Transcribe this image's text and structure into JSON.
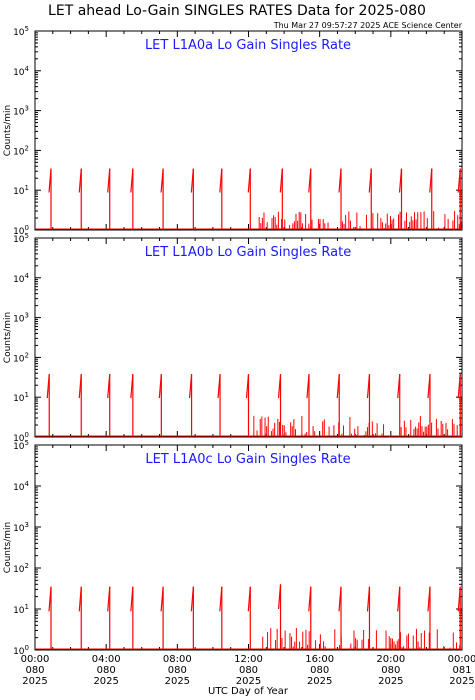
{
  "header": {
    "title": "LET ahead Lo-Gain SINGLES RATES Data for 2025-080",
    "timestamp": "Thu Mar 27 09:57:27 2025 ACE Science Center"
  },
  "axes": {
    "ylabel": "Counts/min",
    "xlabel": "UTC Day of Year",
    "y_ticks": [
      {
        "base": "10",
        "exp": "0"
      },
      {
        "base": "10",
        "exp": "1"
      },
      {
        "base": "10",
        "exp": "2"
      },
      {
        "base": "10",
        "exp": "3"
      },
      {
        "base": "10",
        "exp": "4"
      },
      {
        "base": "10",
        "exp": "5"
      }
    ],
    "x_ticks": [
      {
        "time": "00:00",
        "day": "080",
        "year": "2025"
      },
      {
        "time": "04:00",
        "day": "080",
        "year": "2025"
      },
      {
        "time": "08:00",
        "day": "080",
        "year": "2025"
      },
      {
        "time": "12:00",
        "day": "080",
        "year": "2025"
      },
      {
        "time": "16:00",
        "day": "080",
        "year": "2025"
      },
      {
        "time": "20:00",
        "day": "080",
        "year": "2025"
      },
      {
        "time": "00:00",
        "day": "081",
        "year": "2025"
      }
    ]
  },
  "colors": {
    "data": "#ff0000",
    "panel_title": "#1a1aff"
  },
  "chart_data": [
    {
      "type": "line",
      "title": "LET L1A0a Lo Gain Singles Rate",
      "xlabel": "UTC Day of Year",
      "ylabel": "Counts/min",
      "ylim": [
        1,
        100000
      ],
      "yscale": "log",
      "xlim": [
        0,
        24
      ],
      "x_unit": "hours UTC, day 080",
      "baseline": 1,
      "spikes": [
        {
          "x": 0.9,
          "y": 35
        },
        {
          "x": 2.6,
          "y": 35
        },
        {
          "x": 4.2,
          "y": 35
        },
        {
          "x": 5.5,
          "y": 35
        },
        {
          "x": 7.2,
          "y": 35
        },
        {
          "x": 8.9,
          "y": 35
        },
        {
          "x": 10.5,
          "y": 35
        },
        {
          "x": 12.1,
          "y": 35
        },
        {
          "x": 13.9,
          "y": 35
        },
        {
          "x": 15.5,
          "y": 35
        },
        {
          "x": 17.2,
          "y": 35
        },
        {
          "x": 18.9,
          "y": 35
        },
        {
          "x": 20.6,
          "y": 35
        },
        {
          "x": 22.3,
          "y": 35
        },
        {
          "x": 23.9,
          "y": 35
        }
      ],
      "noise_start": 12.6,
      "noise_max": 3
    },
    {
      "type": "line",
      "title": "LET L1A0b Lo Gain Singles Rate",
      "xlabel": "UTC Day of Year",
      "ylabel": "Counts/min",
      "ylim": [
        1,
        100000
      ],
      "yscale": "log",
      "xlim": [
        0,
        24
      ],
      "x_unit": "hours UTC, day 080",
      "baseline": 1,
      "spikes": [
        {
          "x": 0.8,
          "y": 38
        },
        {
          "x": 2.6,
          "y": 38
        },
        {
          "x": 4.2,
          "y": 38
        },
        {
          "x": 5.5,
          "y": 38
        },
        {
          "x": 7.1,
          "y": 38
        },
        {
          "x": 8.8,
          "y": 38
        },
        {
          "x": 10.4,
          "y": 38
        },
        {
          "x": 12.0,
          "y": 38
        },
        {
          "x": 13.8,
          "y": 38
        },
        {
          "x": 15.4,
          "y": 38
        },
        {
          "x": 17.1,
          "y": 38
        },
        {
          "x": 18.8,
          "y": 38
        },
        {
          "x": 20.5,
          "y": 38
        },
        {
          "x": 22.2,
          "y": 38
        },
        {
          "x": 23.9,
          "y": 38
        }
      ],
      "noise_start": 12.3,
      "noise_max": 3.5
    },
    {
      "type": "line",
      "title": "LET L1A0c Lo Gain Singles Rate",
      "xlabel": "UTC Day of Year",
      "ylabel": "Counts/min",
      "ylim": [
        1,
        100000
      ],
      "yscale": "log",
      "xlim": [
        0,
        24
      ],
      "x_unit": "hours UTC, day 080",
      "baseline": 1,
      "spikes": [
        {
          "x": 0.9,
          "y": 35
        },
        {
          "x": 2.6,
          "y": 35
        },
        {
          "x": 4.2,
          "y": 35
        },
        {
          "x": 5.5,
          "y": 35
        },
        {
          "x": 7.2,
          "y": 35
        },
        {
          "x": 8.9,
          "y": 35
        },
        {
          "x": 10.5,
          "y": 35
        },
        {
          "x": 12.1,
          "y": 35
        },
        {
          "x": 13.8,
          "y": 40
        },
        {
          "x": 15.5,
          "y": 35
        },
        {
          "x": 17.2,
          "y": 35
        },
        {
          "x": 18.8,
          "y": 35
        },
        {
          "x": 20.5,
          "y": 35
        },
        {
          "x": 22.2,
          "y": 35
        },
        {
          "x": 23.9,
          "y": 35
        }
      ],
      "noise_start": 12.8,
      "noise_max": 3.5
    }
  ]
}
